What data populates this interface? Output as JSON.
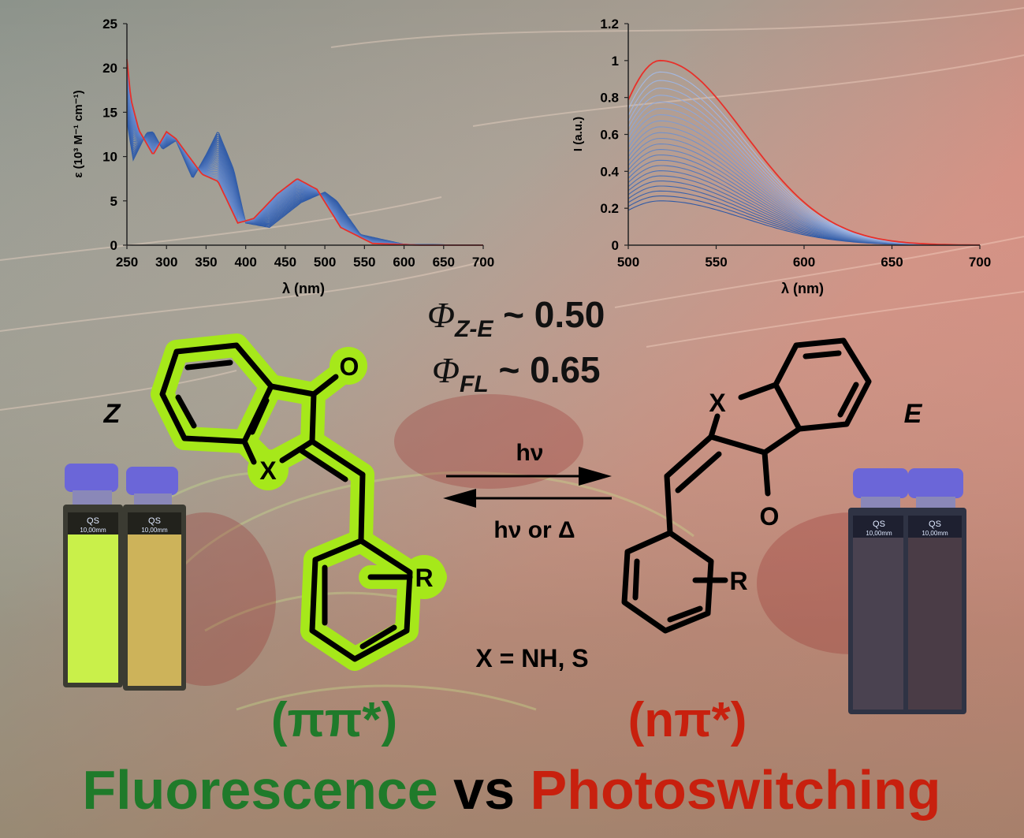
{
  "chart_data": [
    {
      "type": "line",
      "ylabel": "ε (10³ M⁻¹ cm⁻¹)",
      "xlabel": "λ (nm)",
      "xlim": [
        250,
        700
      ],
      "ylim": [
        0,
        25
      ],
      "xticks": [
        "250",
        "300",
        "350",
        "400",
        "450",
        "500",
        "550",
        "600",
        "650",
        "700"
      ],
      "yticks": [
        "0",
        "5",
        "10",
        "15",
        "20",
        "25"
      ],
      "grid": false,
      "series_family": {
        "count": 26,
        "initial_color": "#e8302a",
        "family_color": "#4f78c0",
        "start_points": [
          [
            250,
            21.0
          ],
          [
            255,
            16.5
          ],
          [
            265,
            13.0
          ],
          [
            283,
            10.2
          ],
          [
            300,
            12.8
          ],
          [
            312,
            12.0
          ],
          [
            330,
            9.8
          ],
          [
            345,
            8.0
          ],
          [
            365,
            7.2
          ],
          [
            390,
            2.5
          ],
          [
            410,
            3.0
          ],
          [
            440,
            5.8
          ],
          [
            465,
            7.5
          ],
          [
            490,
            6.3
          ],
          [
            520,
            2.0
          ],
          [
            560,
            0.2
          ],
          [
            620,
            0.0
          ],
          [
            700,
            0.0
          ]
        ],
        "end_points": [
          [
            250,
            14.0
          ],
          [
            258,
            9.6
          ],
          [
            275,
            12.7
          ],
          [
            283,
            12.8
          ],
          [
            295,
            10.8
          ],
          [
            312,
            11.8
          ],
          [
            333,
            7.5
          ],
          [
            350,
            10.2
          ],
          [
            365,
            12.9
          ],
          [
            385,
            8.5
          ],
          [
            400,
            2.5
          ],
          [
            430,
            2.0
          ],
          [
            470,
            4.8
          ],
          [
            500,
            6.0
          ],
          [
            515,
            5.0
          ],
          [
            545,
            1.2
          ],
          [
            600,
            0.1
          ],
          [
            700,
            0.0
          ]
        ]
      }
    },
    {
      "type": "line",
      "ylabel": "I (a.u.)",
      "xlabel": "λ (nm)",
      "xlim": [
        500,
        700
      ],
      "ylim": [
        0,
        1.2
      ],
      "xticks": [
        "500",
        "550",
        "600",
        "650",
        "700"
      ],
      "yticks": [
        "0",
        "0.2",
        "0.4",
        "0.6",
        "0.8",
        "1",
        "1.2"
      ],
      "grid": false,
      "series_family": {
        "count": 24,
        "initial_color": "#e8302a",
        "family_color": "#4f78c0",
        "peak_x": 518,
        "max_peak": 1.0,
        "min_peak": 0.24
      }
    }
  ],
  "scheme": {
    "phi_ze_sym": "Φ",
    "phi_ze_sub": "Z-E",
    "phi_ze_val": " ~ 0.50",
    "phi_fl_sym": "Φ",
    "phi_fl_sub": "FL",
    "phi_fl_val": " ~ 0.65",
    "z_label": "Z",
    "e_label": "E",
    "arrow_forward_label": "hν",
    "arrow_back_label": "hν or Δ",
    "x_def": "X = NH, S",
    "z_o": "O",
    "z_x": "X",
    "z_r": "R",
    "e_o": "O",
    "e_x": "X",
    "e_r": "R",
    "pipi": "(ππ*)",
    "npi": "(nπ*)",
    "cuvette_text": "QS",
    "cuvette_size": "10,00mm"
  },
  "title": {
    "fluorescence": "Fluorescence",
    "vs": " vs ",
    "photoswitching": "Photoswitching"
  },
  "colors": {
    "green": "#1f7a2a",
    "red": "#c8200e",
    "highlight": "#a6e81a",
    "black": "#000000"
  }
}
